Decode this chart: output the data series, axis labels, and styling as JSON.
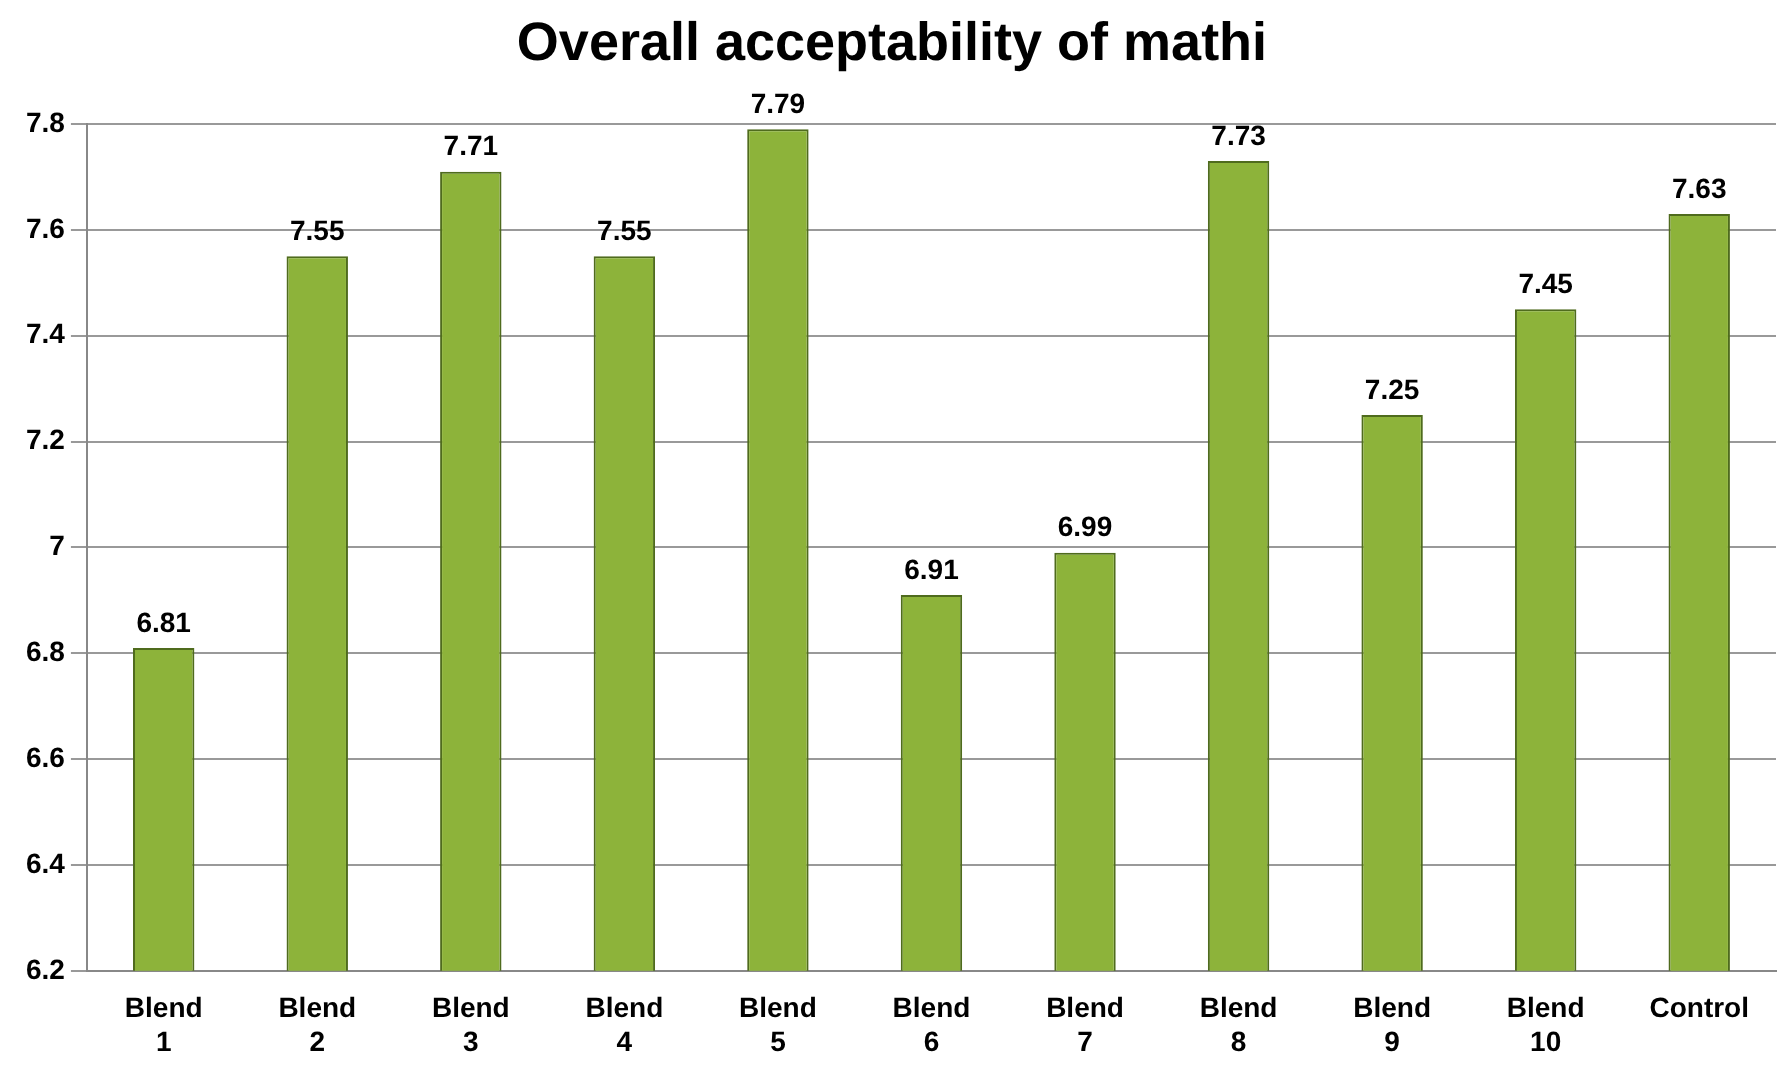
{
  "chart_data": {
    "type": "bar",
    "title": "Overall acceptability of mathi",
    "categories": [
      "Blend 1",
      "Blend 2",
      "Blend 3",
      "Blend 4",
      "Blend 5",
      "Blend 6",
      "Blend 7",
      "Blend 8",
      "Blend 9",
      "Blend 10",
      "Control"
    ],
    "values": [
      6.81,
      7.55,
      7.71,
      7.55,
      7.79,
      6.91,
      6.99,
      7.73,
      7.25,
      7.45,
      7.63
    ],
    "color": "#8db33a",
    "ylim": [
      6.2,
      7.8
    ],
    "yticks": [
      6.2,
      6.4,
      6.6,
      6.8,
      7,
      7.2,
      7.4,
      7.6,
      7.8
    ],
    "grid": "y",
    "data_labels": true
  }
}
